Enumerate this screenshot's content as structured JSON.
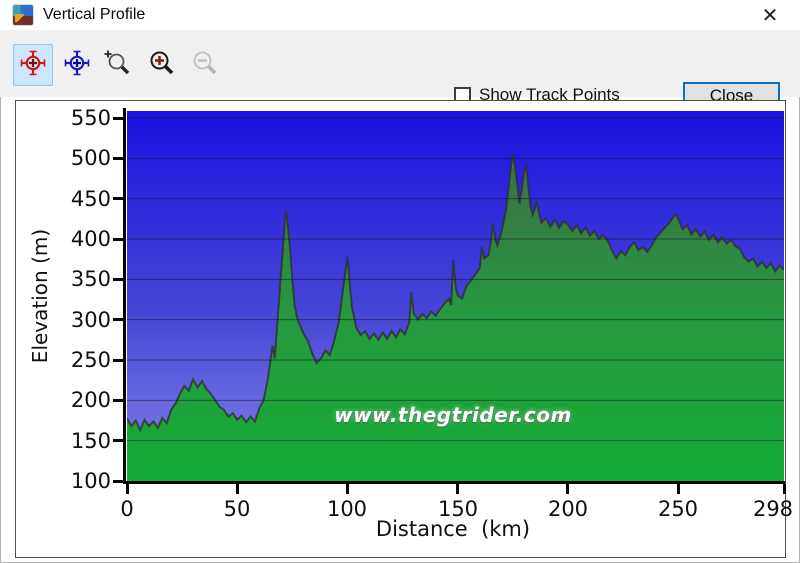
{
  "window": {
    "title": "Vertical Profile"
  },
  "icons": {
    "close": "✕"
  },
  "toolbar": {
    "buttons": [
      {
        "icon": "center-on-track-red-icon",
        "selected": true,
        "enabled": true
      },
      {
        "icon": "center-on-track-blue-icon",
        "selected": false,
        "enabled": true
      },
      {
        "icon": "zoom-select-icon",
        "selected": false,
        "enabled": true
      },
      {
        "icon": "zoom-in-icon",
        "selected": false,
        "enabled": true
      },
      {
        "icon": "zoom-out-icon",
        "selected": false,
        "enabled": false
      }
    ],
    "show_track_points_label": "Show Track Points",
    "show_track_points_checked": false,
    "close_button_label": "Close"
  },
  "chart_data": {
    "type": "area",
    "xlabel": "Distance  (km)",
    "ylabel": "Elevation (m)",
    "watermark": "www.thegtrider.com",
    "xlim": [
      0,
      298
    ],
    "ylim": [
      100,
      558
    ],
    "x_ticks": [
      0,
      50,
      100,
      150,
      200,
      250,
      298
    ],
    "y_ticks": [
      550,
      500,
      450,
      400,
      350,
      300,
      250,
      200,
      150,
      100
    ],
    "grid": true,
    "colors": {
      "sky_top": "#1b12e0",
      "sky_mid": "#4746d6",
      "sky_bottom": "#8585ea",
      "terrain_top": "#44604a",
      "terrain_upper": "#357b43",
      "terrain_mid": "#279940",
      "terrain_bottom": "#14ab36",
      "terrain_edge": "rgba(48,48,48,0.8)",
      "gridline": "rgba(15,15,35,0.5)",
      "axis": "#000000"
    },
    "profile_km_m": [
      [
        0,
        178
      ],
      [
        2,
        168
      ],
      [
        4,
        175
      ],
      [
        6,
        163
      ],
      [
        8,
        176
      ],
      [
        10,
        168
      ],
      [
        12,
        174
      ],
      [
        14,
        166
      ],
      [
        16,
        178
      ],
      [
        18,
        172
      ],
      [
        20,
        188
      ],
      [
        22,
        196
      ],
      [
        24,
        208
      ],
      [
        26,
        218
      ],
      [
        28,
        212
      ],
      [
        30,
        226
      ],
      [
        32,
        216
      ],
      [
        34,
        224
      ],
      [
        36,
        214
      ],
      [
        38,
        208
      ],
      [
        40,
        200
      ],
      [
        42,
        192
      ],
      [
        44,
        188
      ],
      [
        46,
        180
      ],
      [
        48,
        184
      ],
      [
        50,
        176
      ],
      [
        52,
        181
      ],
      [
        54,
        173
      ],
      [
        56,
        180
      ],
      [
        58,
        174
      ],
      [
        60,
        190
      ],
      [
        62,
        200
      ],
      [
        64,
        228
      ],
      [
        66,
        268
      ],
      [
        67,
        252
      ],
      [
        68,
        288
      ],
      [
        70,
        362
      ],
      [
        71,
        398
      ],
      [
        72,
        435
      ],
      [
        73,
        415
      ],
      [
        74,
        388
      ],
      [
        75,
        348
      ],
      [
        76,
        318
      ],
      [
        77,
        304
      ],
      [
        78,
        296
      ],
      [
        80,
        283
      ],
      [
        82,
        274
      ],
      [
        84,
        258
      ],
      [
        86,
        246
      ],
      [
        88,
        252
      ],
      [
        90,
        262
      ],
      [
        92,
        256
      ],
      [
        94,
        274
      ],
      [
        96,
        296
      ],
      [
        98,
        338
      ],
      [
        100,
        378
      ],
      [
        101,
        344
      ],
      [
        102,
        316
      ],
      [
        104,
        290
      ],
      [
        106,
        281
      ],
      [
        108,
        286
      ],
      [
        110,
        276
      ],
      [
        112,
        283
      ],
      [
        114,
        275
      ],
      [
        116,
        284
      ],
      [
        118,
        276
      ],
      [
        120,
        286
      ],
      [
        122,
        278
      ],
      [
        124,
        288
      ],
      [
        126,
        282
      ],
      [
        128,
        296
      ],
      [
        129,
        334
      ],
      [
        130,
        308
      ],
      [
        132,
        300
      ],
      [
        134,
        307
      ],
      [
        136,
        302
      ],
      [
        138,
        310
      ],
      [
        140,
        305
      ],
      [
        142,
        313
      ],
      [
        144,
        320
      ],
      [
        146,
        326
      ],
      [
        147,
        318
      ],
      [
        148,
        374
      ],
      [
        149,
        342
      ],
      [
        150,
        330
      ],
      [
        152,
        326
      ],
      [
        154,
        342
      ],
      [
        156,
        348
      ],
      [
        158,
        356
      ],
      [
        160,
        364
      ],
      [
        161,
        390
      ],
      [
        162,
        376
      ],
      [
        164,
        380
      ],
      [
        165,
        396
      ],
      [
        166,
        420
      ],
      [
        167,
        400
      ],
      [
        168,
        392
      ],
      [
        170,
        410
      ],
      [
        172,
        438
      ],
      [
        174,
        486
      ],
      [
        175,
        506
      ],
      [
        176,
        490
      ],
      [
        177,
        468
      ],
      [
        178,
        444
      ],
      [
        179,
        460
      ],
      [
        180,
        480
      ],
      [
        181,
        492
      ],
      [
        182,
        466
      ],
      [
        183,
        440
      ],
      [
        184,
        430
      ],
      [
        185,
        438
      ],
      [
        186,
        445
      ],
      [
        187,
        430
      ],
      [
        188,
        420
      ],
      [
        190,
        426
      ],
      [
        192,
        415
      ],
      [
        194,
        424
      ],
      [
        196,
        414
      ],
      [
        198,
        422
      ],
      [
        200,
        418
      ],
      [
        202,
        410
      ],
      [
        204,
        417
      ],
      [
        206,
        407
      ],
      [
        208,
        414
      ],
      [
        210,
        404
      ],
      [
        212,
        410
      ],
      [
        214,
        400
      ],
      [
        216,
        405
      ],
      [
        218,
        398
      ],
      [
        220,
        386
      ],
      [
        222,
        376
      ],
      [
        224,
        385
      ],
      [
        226,
        380
      ],
      [
        228,
        390
      ],
      [
        230,
        396
      ],
      [
        232,
        386
      ],
      [
        234,
        390
      ],
      [
        236,
        384
      ],
      [
        238,
        392
      ],
      [
        240,
        402
      ],
      [
        242,
        408
      ],
      [
        244,
        414
      ],
      [
        246,
        420
      ],
      [
        248,
        428
      ],
      [
        249,
        431
      ],
      [
        250,
        425
      ],
      [
        252,
        412
      ],
      [
        254,
        417
      ],
      [
        256,
        406
      ],
      [
        258,
        412
      ],
      [
        260,
        403
      ],
      [
        262,
        409
      ],
      [
        264,
        399
      ],
      [
        266,
        405
      ],
      [
        268,
        396
      ],
      [
        270,
        402
      ],
      [
        272,
        394
      ],
      [
        274,
        399
      ],
      [
        276,
        391
      ],
      [
        278,
        388
      ],
      [
        280,
        377
      ],
      [
        282,
        372
      ],
      [
        284,
        376
      ],
      [
        286,
        366
      ],
      [
        288,
        372
      ],
      [
        290,
        364
      ],
      [
        292,
        370
      ],
      [
        294,
        360
      ],
      [
        296,
        367
      ],
      [
        298,
        362
      ]
    ]
  }
}
